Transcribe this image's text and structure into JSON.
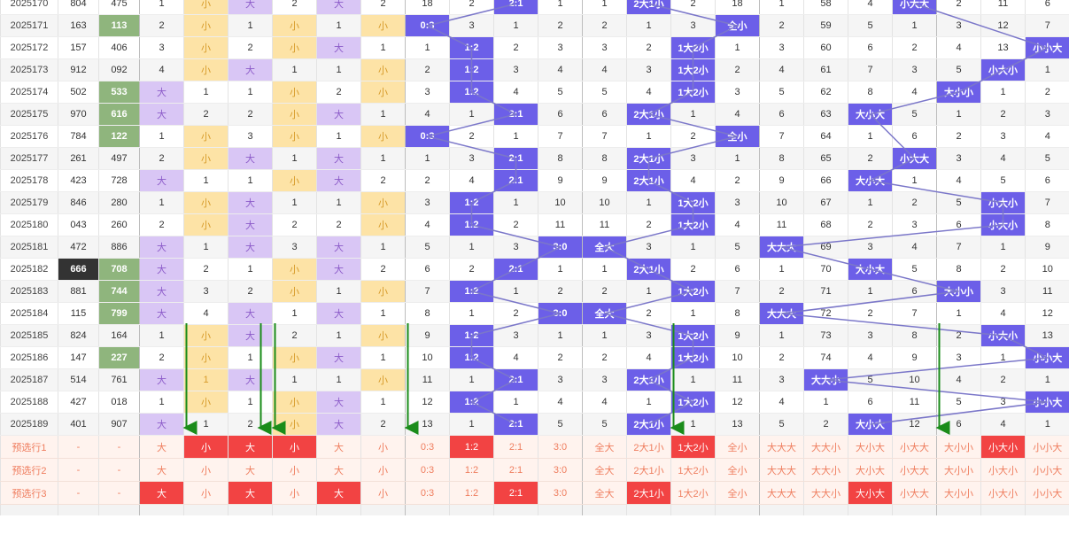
{
  "colors": {
    "hit_blue": "#6c5fe8",
    "hot_green": "#8fb57d",
    "dark": "#333333",
    "big_purple": "#d9c6f5",
    "small_yellow": "#fde3a6",
    "pick_red": "#f24343",
    "pick_bg": "#fff3ee",
    "pick_text": "#ef7d5e",
    "line": "#7b77c9",
    "arrow": "#1a8c1a"
  },
  "rows": [
    {
      "period": "2025170",
      "a": "804",
      "b": "475",
      "c": [
        "1",
        "小",
        "大",
        "2",
        "大",
        "2",
        "18",
        "2",
        "2:1",
        "1",
        "1",
        "2大1小",
        "2",
        "18",
        "1",
        "58",
        "4",
        "小大大",
        "2",
        "11",
        "6"
      ]
    },
    {
      "period": "2025171",
      "a": "163",
      "b": "113",
      "c": [
        "2",
        "小",
        "1",
        "小",
        "1",
        "小",
        "0:3",
        "3",
        "1",
        "2",
        "2",
        "1",
        "3",
        "全小",
        "2",
        "59",
        "5",
        "1",
        "3",
        "12",
        "7"
      ]
    },
    {
      "period": "2025172",
      "a": "157",
      "b": "406",
      "c": [
        "3",
        "小",
        "2",
        "小",
        "大",
        "1",
        "1",
        "1:2",
        "2",
        "3",
        "3",
        "2",
        "1大2小",
        "1",
        "3",
        "60",
        "6",
        "2",
        "4",
        "13",
        "小小大"
      ]
    },
    {
      "period": "2025173",
      "a": "912",
      "b": "092",
      "c": [
        "4",
        "小",
        "大",
        "1",
        "1",
        "小",
        "2",
        "1:2",
        "3",
        "4",
        "4",
        "3",
        "1大2小",
        "2",
        "4",
        "61",
        "7",
        "3",
        "5",
        "小大小",
        "1"
      ]
    },
    {
      "period": "2025174",
      "a": "502",
      "b": "533",
      "c": [
        "大",
        "1",
        "1",
        "小",
        "2",
        "小",
        "3",
        "1:2",
        "4",
        "5",
        "5",
        "4",
        "1大2小",
        "3",
        "5",
        "62",
        "8",
        "4",
        "大小小",
        "1",
        "2"
      ]
    },
    {
      "period": "2025175",
      "a": "970",
      "b": "616",
      "c": [
        "大",
        "2",
        "2",
        "小",
        "大",
        "1",
        "4",
        "1",
        "2:1",
        "6",
        "6",
        "2大1小",
        "1",
        "4",
        "6",
        "63",
        "大小大",
        "5",
        "1",
        "2",
        "3"
      ]
    },
    {
      "period": "2025176",
      "a": "784",
      "b": "122",
      "c": [
        "1",
        "小",
        "3",
        "小",
        "1",
        "小",
        "0:3",
        "2",
        "1",
        "7",
        "7",
        "1",
        "2",
        "全小",
        "7",
        "64",
        "1",
        "6",
        "2",
        "3",
        "4"
      ]
    },
    {
      "period": "2025177",
      "a": "261",
      "b": "497",
      "c": [
        "2",
        "小",
        "大",
        "1",
        "大",
        "1",
        "1",
        "3",
        "2:1",
        "8",
        "8",
        "2大1小",
        "3",
        "1",
        "8",
        "65",
        "2",
        "小大大",
        "3",
        "4",
        "5"
      ]
    },
    {
      "period": "2025178",
      "a": "423",
      "b": "728",
      "c": [
        "大",
        "1",
        "1",
        "小",
        "大",
        "2",
        "2",
        "4",
        "2:1",
        "9",
        "9",
        "2大1小",
        "4",
        "2",
        "9",
        "66",
        "大小大",
        "1",
        "4",
        "5",
        "6"
      ]
    },
    {
      "period": "2025179",
      "a": "846",
      "b": "280",
      "c": [
        "1",
        "小",
        "大",
        "1",
        "1",
        "小",
        "3",
        "1:2",
        "1",
        "10",
        "10",
        "1",
        "1大2小",
        "3",
        "10",
        "67",
        "1",
        "2",
        "5",
        "小大小",
        "7"
      ]
    },
    {
      "period": "2025180",
      "a": "043",
      "b": "260",
      "c": [
        "2",
        "小",
        "大",
        "2",
        "2",
        "小",
        "4",
        "1:2",
        "2",
        "11",
        "11",
        "2",
        "1大2小",
        "4",
        "11",
        "68",
        "2",
        "3",
        "6",
        "小大小",
        "8"
      ]
    },
    {
      "period": "2025181",
      "a": "472",
      "b": "886",
      "c": [
        "大",
        "1",
        "大",
        "3",
        "大",
        "1",
        "5",
        "1",
        "3",
        "3:0",
        "全大",
        "3",
        "1",
        "5",
        "大大大",
        "69",
        "3",
        "4",
        "7",
        "1",
        "9"
      ]
    },
    {
      "period": "2025182",
      "a": "666",
      "b": "708",
      "c": [
        "大",
        "2",
        "1",
        "小",
        "大",
        "2",
        "6",
        "2",
        "2:1",
        "1",
        "1",
        "2大1小",
        "2",
        "6",
        "1",
        "70",
        "大小大",
        "5",
        "8",
        "2",
        "10"
      ]
    },
    {
      "period": "2025183",
      "a": "881",
      "b": "744",
      "c": [
        "大",
        "3",
        "2",
        "小",
        "1",
        "小",
        "7",
        "1:2",
        "1",
        "2",
        "2",
        "1",
        "1大2小",
        "7",
        "2",
        "71",
        "1",
        "6",
        "大小小",
        "3",
        "11"
      ]
    },
    {
      "period": "2025184",
      "a": "115",
      "b": "799",
      "c": [
        "大",
        "4",
        "大",
        "1",
        "大",
        "1",
        "8",
        "1",
        "2",
        "3:0",
        "全大",
        "2",
        "1",
        "8",
        "大大大",
        "72",
        "2",
        "7",
        "1",
        "4",
        "12"
      ]
    },
    {
      "period": "2025185",
      "a": "824",
      "b": "164",
      "c": [
        "1",
        "小",
        "大",
        "2",
        "1",
        "小",
        "9",
        "1:2",
        "3",
        "1",
        "1",
        "3",
        "1大2小",
        "9",
        "1",
        "73",
        "3",
        "8",
        "2",
        "小大小",
        "13"
      ]
    },
    {
      "period": "2025186",
      "a": "147",
      "b": "227",
      "c": [
        "2",
        "小",
        "1",
        "小",
        "大",
        "1",
        "10",
        "1:2",
        "4",
        "2",
        "2",
        "4",
        "1大2小",
        "10",
        "2",
        "74",
        "4",
        "9",
        "3",
        "1",
        "小小大"
      ]
    },
    {
      "period": "2025187",
      "a": "514",
      "b": "761",
      "c": [
        "大",
        "1",
        "大",
        "1",
        "1",
        "小",
        "11",
        "1",
        "2:1",
        "3",
        "3",
        "2大1小",
        "1",
        "11",
        "3",
        "大大小",
        "5",
        "10",
        "4",
        "2",
        "1"
      ]
    },
    {
      "period": "2025188",
      "a": "427",
      "b": "018",
      "c": [
        "1",
        "小",
        "1",
        "小",
        "大",
        "1",
        "12",
        "1:2",
        "1",
        "4",
        "4",
        "1",
        "1大2小",
        "12",
        "4",
        "1",
        "6",
        "11",
        "5",
        "3",
        "小小大"
      ]
    },
    {
      "period": "2025189",
      "a": "401",
      "b": "907",
      "c": [
        "大",
        "1",
        "2",
        "小",
        "大",
        "2",
        "13",
        "1",
        "2:1",
        "5",
        "5",
        "2大1小",
        "1",
        "13",
        "5",
        "2",
        "大小大",
        "12",
        "6",
        "4",
        "1"
      ]
    }
  ],
  "picks": [
    {
      "label": "预选行1",
      "a": "-",
      "b": "-",
      "c": [
        "大",
        "小",
        "大",
        "小",
        "大",
        "小",
        "0:3",
        "1:2",
        "2:1",
        "3:0",
        "全大",
        "2大1小",
        "1大2小",
        "全小",
        "大大大",
        "大大小",
        "大小大",
        "小大大",
        "大小小",
        "小大小",
        "小小大"
      ]
    },
    {
      "label": "预选行2",
      "a": "-",
      "b": "-",
      "c": [
        "大",
        "小",
        "大",
        "小",
        "大",
        "小",
        "0:3",
        "1:2",
        "2:1",
        "3:0",
        "全大",
        "2大1小",
        "1大2小",
        "全小",
        "大大大",
        "大大小",
        "大小大",
        "小大大",
        "大小小",
        "小大小",
        "小小大"
      ]
    },
    {
      "label": "预选行3",
      "a": "-",
      "b": "-",
      "c": [
        "大",
        "小",
        "大",
        "小",
        "大",
        "小",
        "0:3",
        "1:2",
        "2:1",
        "3:0",
        "全大",
        "2大1小",
        "1大2小",
        "全小",
        "大大大",
        "大大小",
        "大小大",
        "小大大",
        "大小小",
        "小大小",
        "小小大"
      ]
    }
  ],
  "footer_labels": [
    "",
    "",
    "",
    "",
    "",
    "",
    "",
    "",
    "",
    "",
    "",
    "",
    "",
    "",
    "",
    "",
    "",
    "",
    "",
    "",
    "",
    "",
    "",
    ""
  ]
}
